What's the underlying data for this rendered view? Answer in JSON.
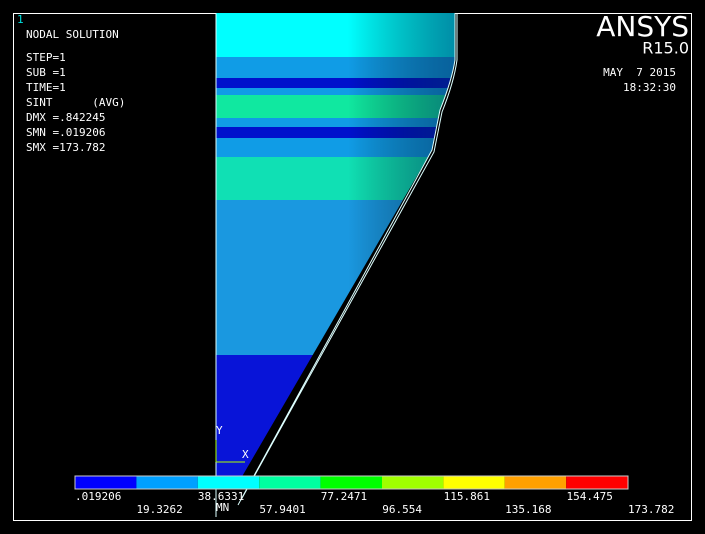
{
  "window_number": "1",
  "info": [
    "NODAL SOLUTION",
    "STEP=1",
    "SUB =1",
    "TIME=1",
    "SINT      (AVG)",
    "DMX =.842245",
    "SMN =.019206",
    "SMX =173.782"
  ],
  "logo": {
    "name": "ANSYS",
    "version": "R15.0"
  },
  "timestamp": {
    "date": "MAY  7 2015",
    "time": "18:32:30"
  },
  "triad": {
    "y": "Y",
    "x": "X",
    "min": "MN"
  },
  "legend": [
    ".019206",
    "19.3262",
    "38.6331",
    "57.9401",
    "77.2471",
    "96.554",
    "115.861",
    "135.168",
    "154.475",
    "173.782"
  ]
}
